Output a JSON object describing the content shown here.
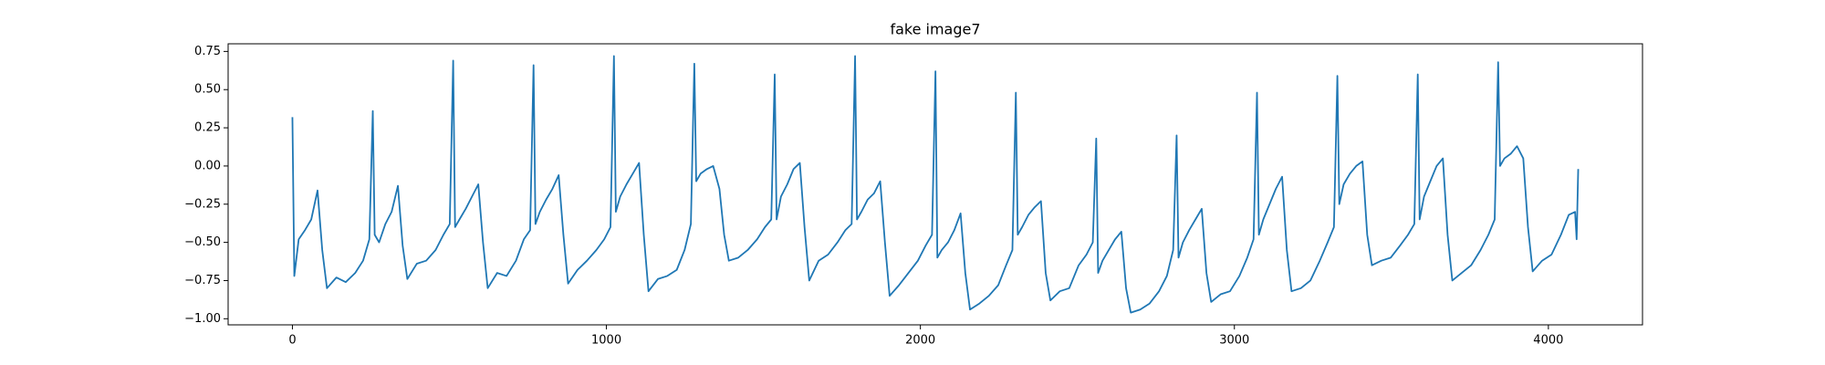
{
  "chart_data": {
    "type": "line",
    "title": "fake image7",
    "color": "#1f77b4",
    "x": [
      0,
      6,
      20,
      40,
      60,
      80,
      95,
      110,
      140,
      170,
      200,
      225,
      245,
      256,
      262,
      276,
      296,
      316,
      336,
      351,
      366,
      396,
      426,
      456,
      481,
      501,
      512,
      518,
      532,
      552,
      572,
      592,
      607,
      622,
      652,
      682,
      712,
      737,
      757,
      768,
      774,
      788,
      808,
      828,
      848,
      863,
      878,
      908,
      938,
      968,
      993,
      1013,
      1024,
      1030,
      1044,
      1064,
      1084,
      1104,
      1119,
      1134,
      1164,
      1194,
      1224,
      1249,
      1269,
      1280,
      1286,
      1300,
      1320,
      1340,
      1360,
      1375,
      1390,
      1420,
      1450,
      1480,
      1505,
      1525,
      1536,
      1542,
      1556,
      1576,
      1596,
      1616,
      1631,
      1646,
      1676,
      1706,
      1736,
      1761,
      1781,
      1792,
      1798,
      1812,
      1832,
      1852,
      1872,
      1887,
      1902,
      1932,
      1962,
      1992,
      2017,
      2037,
      2048,
      2054,
      2068,
      2088,
      2108,
      2128,
      2143,
      2158,
      2188,
      2218,
      2248,
      2273,
      2293,
      2304,
      2310,
      2324,
      2344,
      2364,
      2384,
      2399,
      2414,
      2444,
      2474,
      2504,
      2529,
      2549,
      2560,
      2566,
      2580,
      2600,
      2620,
      2640,
      2655,
      2670,
      2700,
      2730,
      2760,
      2785,
      2805,
      2816,
      2822,
      2836,
      2856,
      2876,
      2896,
      2911,
      2926,
      2956,
      2986,
      3016,
      3041,
      3061,
      3072,
      3078,
      3092,
      3112,
      3132,
      3152,
      3167,
      3182,
      3212,
      3242,
      3272,
      3297,
      3317,
      3328,
      3334,
      3348,
      3368,
      3388,
      3408,
      3423,
      3438,
      3468,
      3498,
      3528,
      3553,
      3573,
      3584,
      3590,
      3604,
      3624,
      3644,
      3664,
      3679,
      3694,
      3724,
      3754,
      3784,
      3809,
      3829,
      3840,
      3846,
      3860,
      3880,
      3900,
      3920,
      3935,
      3950,
      3980,
      4010,
      4040,
      4065,
      4085,
      4090,
      4095
    ],
    "values": [
      0.32,
      -0.72,
      -0.48,
      -0.42,
      -0.35,
      -0.16,
      -0.55,
      -0.8,
      -0.73,
      -0.76,
      -0.7,
      -0.62,
      -0.48,
      0.36,
      -0.45,
      -0.5,
      -0.38,
      -0.3,
      -0.13,
      -0.52,
      -0.74,
      -0.64,
      -0.62,
      -0.55,
      -0.45,
      -0.38,
      0.69,
      -0.4,
      -0.35,
      -0.28,
      -0.2,
      -0.12,
      -0.5,
      -0.8,
      -0.7,
      -0.72,
      -0.62,
      -0.48,
      -0.42,
      0.66,
      -0.38,
      -0.3,
      -0.22,
      -0.15,
      -0.06,
      -0.45,
      -0.77,
      -0.68,
      -0.62,
      -0.55,
      -0.48,
      -0.4,
      0.72,
      -0.3,
      -0.2,
      -0.12,
      -0.05,
      0.02,
      -0.45,
      -0.82,
      -0.74,
      -0.72,
      -0.68,
      -0.55,
      -0.38,
      0.67,
      -0.1,
      -0.05,
      -0.02,
      0.0,
      -0.15,
      -0.45,
      -0.62,
      -0.6,
      -0.55,
      -0.48,
      -0.4,
      -0.35,
      0.6,
      -0.35,
      -0.2,
      -0.12,
      -0.02,
      0.02,
      -0.4,
      -0.75,
      -0.62,
      -0.58,
      -0.5,
      -0.42,
      -0.38,
      0.72,
      -0.35,
      -0.3,
      -0.22,
      -0.18,
      -0.1,
      -0.5,
      -0.85,
      -0.78,
      -0.7,
      -0.62,
      -0.52,
      -0.45,
      0.62,
      -0.6,
      -0.55,
      -0.5,
      -0.42,
      -0.31,
      -0.7,
      -0.94,
      -0.9,
      -0.85,
      -0.78,
      -0.65,
      -0.55,
      0.48,
      -0.45,
      -0.4,
      -0.32,
      -0.27,
      -0.23,
      -0.7,
      -0.88,
      -0.82,
      -0.8,
      -0.65,
      -0.58,
      -0.5,
      0.18,
      -0.7,
      -0.62,
      -0.55,
      -0.48,
      -0.43,
      -0.8,
      -0.96,
      -0.94,
      -0.9,
      -0.82,
      -0.72,
      -0.55,
      0.2,
      -0.6,
      -0.5,
      -0.42,
      -0.35,
      -0.28,
      -0.7,
      -0.89,
      -0.84,
      -0.82,
      -0.72,
      -0.6,
      -0.48,
      0.48,
      -0.45,
      -0.35,
      -0.25,
      -0.15,
      -0.07,
      -0.55,
      -0.82,
      -0.8,
      -0.75,
      -0.62,
      -0.5,
      -0.4,
      0.59,
      -0.25,
      -0.12,
      -0.05,
      0.0,
      0.03,
      -0.45,
      -0.65,
      -0.62,
      -0.6,
      -0.52,
      -0.45,
      -0.38,
      0.6,
      -0.35,
      -0.2,
      -0.1,
      0.0,
      0.05,
      -0.45,
      -0.75,
      -0.7,
      -0.65,
      -0.55,
      -0.45,
      -0.35,
      0.68,
      0.0,
      0.05,
      0.08,
      0.13,
      0.05,
      -0.4,
      -0.69,
      -0.62,
      -0.58,
      -0.45,
      -0.32,
      -0.3,
      -0.48,
      -0.02
    ],
    "xlim": [
      -204.75,
      4299.75
    ],
    "ylim": [
      -1.04,
      0.8
    ],
    "xticks": [
      0,
      1000,
      2000,
      3000,
      4000
    ],
    "yticks": [
      {
        "value": -1.0,
        "label": "−1.00"
      },
      {
        "value": -0.75,
        "label": "−0.75"
      },
      {
        "value": -0.5,
        "label": "−0.50"
      },
      {
        "value": -0.25,
        "label": "−0.25"
      },
      {
        "value": 0,
        "label": "0.00"
      },
      {
        "value": 0.25,
        "label": "0.25"
      },
      {
        "value": 0.5,
        "label": "0.50"
      },
      0.75
    ],
    "grid": false
  }
}
